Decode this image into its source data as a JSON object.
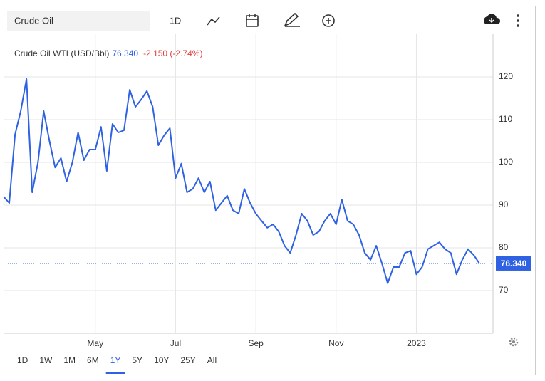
{
  "toolbar": {
    "search": "Crude Oil",
    "interval": "1D"
  },
  "quote": {
    "last": "76.340",
    "change": "-2.150 (-2.74%)"
  },
  "ranges": {
    "items": [
      "1D",
      "1W",
      "1M",
      "6M",
      "1Y",
      "5Y",
      "10Y",
      "25Y",
      "All"
    ],
    "selected": "1Y"
  },
  "chart_data": {
    "type": "line",
    "categories": [
      null,
      null,
      null,
      null,
      null,
      null,
      null,
      null,
      null,
      null,
      null,
      null,
      null,
      null,
      null,
      null,
      "May",
      null,
      null,
      null,
      null,
      null,
      null,
      null,
      null,
      null,
      null,
      null,
      null,
      null,
      "Jul",
      null,
      null,
      null,
      null,
      null,
      null,
      null,
      null,
      null,
      null,
      null,
      null,
      null,
      "Sep",
      null,
      null,
      null,
      null,
      null,
      null,
      null,
      null,
      null,
      null,
      null,
      null,
      null,
      "Nov",
      null,
      null,
      null,
      null,
      null,
      null,
      null,
      null,
      null,
      null,
      null,
      null,
      null,
      "2023",
      null,
      null,
      null,
      null,
      null,
      null,
      null,
      null,
      null,
      null,
      null
    ],
    "series": [
      {
        "name": "Crude Oil WTI (USD/Bbl)",
        "color": "#2f62e3",
        "values": [
          92,
          90.5,
          106.5,
          112,
          119.5,
          93,
          100,
          112,
          105,
          98.8,
          101,
          95.5,
          100,
          107,
          100.5,
          103,
          103,
          108.3,
          98,
          109,
          107,
          107.5,
          117,
          113,
          114.7,
          116.7,
          113,
          104,
          106.3,
          108,
          96.3,
          99.7,
          93,
          93.8,
          96.3,
          93,
          95.5,
          88.8,
          90.5,
          92.2,
          88.8,
          88,
          93.8,
          90.5,
          88,
          86.3,
          84.7,
          85.5,
          83.8,
          80.5,
          78.8,
          83,
          88,
          86.3,
          83,
          83.8,
          86.3,
          88,
          85.5,
          91.3,
          86.3,
          85.5,
          83,
          78.8,
          77.2,
          80.5,
          76.3,
          71.7,
          75.5,
          75.5,
          78.8,
          79.3,
          73.8,
          75.5,
          79.7,
          80.5,
          81.3,
          79.7,
          78.8,
          73.8,
          77.2,
          79.7,
          78.3,
          76.34
        ]
      }
    ],
    "ylim": [
      60,
      130
    ],
    "yticks": [
      70,
      80,
      90,
      100,
      110,
      120
    ],
    "grid": true
  }
}
